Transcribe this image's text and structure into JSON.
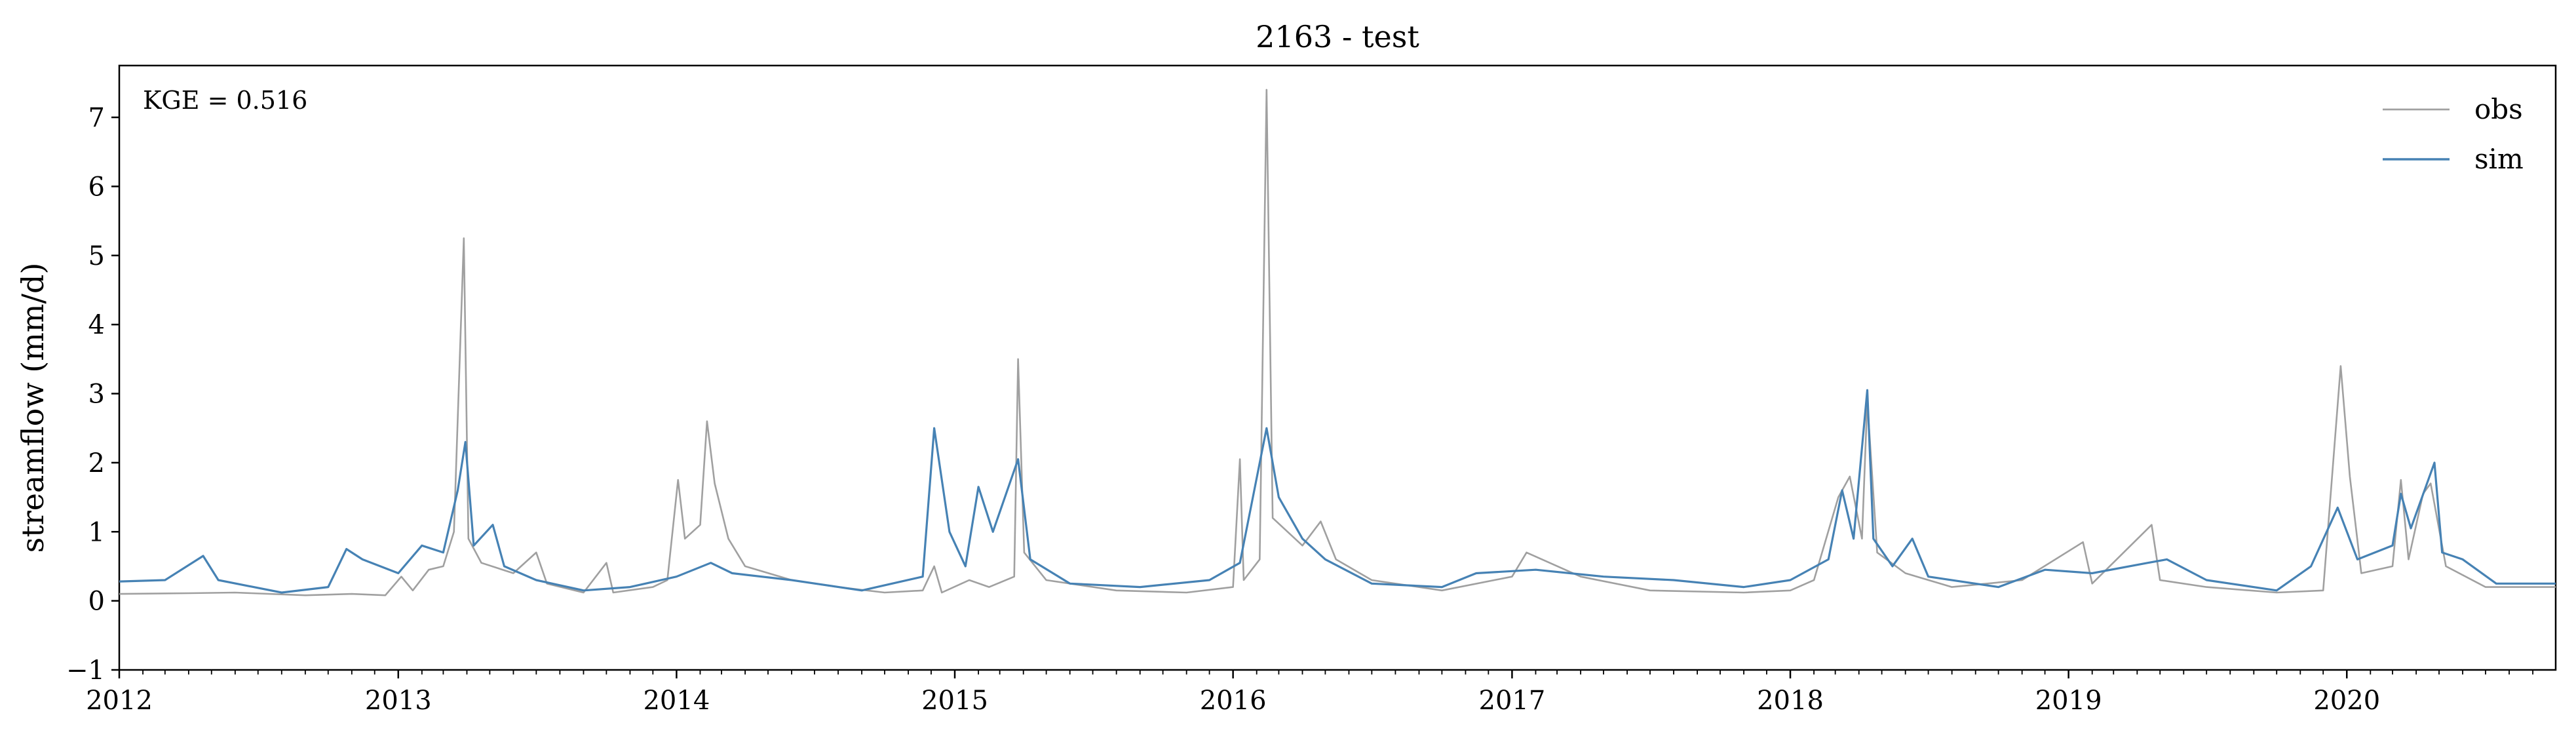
{
  "chart_data": {
    "type": "line",
    "title": "2163 - test",
    "xlabel": "",
    "ylabel": "streamflow (mm/d)",
    "annotation": "KGE = 0.516",
    "xlim": [
      "2012-01-01",
      "2020-10-01"
    ],
    "ylim": [
      -1,
      7.75
    ],
    "x_ticks": [
      "2012",
      "2013",
      "2014",
      "2015",
      "2016",
      "2017",
      "2018",
      "2019",
      "2020"
    ],
    "y_ticks": [
      -1,
      0,
      1,
      2,
      3,
      4,
      5,
      6,
      7
    ],
    "grid": false,
    "legend_position": "top-right",
    "series": [
      {
        "name": "obs",
        "color": "#a0a0a0",
        "points": [
          [
            "2012-01-01",
            0.1
          ],
          [
            "2012-04-01",
            0.11
          ],
          [
            "2012-06-01",
            0.12
          ],
          [
            "2012-09-01",
            0.08
          ],
          [
            "2012-11-01",
            0.1
          ],
          [
            "2012-12-15",
            0.08
          ],
          [
            "2013-01-05",
            0.35
          ],
          [
            "2013-01-20",
            0.15
          ],
          [
            "2013-02-10",
            0.45
          ],
          [
            "2013-03-01",
            0.5
          ],
          [
            "2013-03-15",
            1.0
          ],
          [
            "2013-03-28",
            5.25
          ],
          [
            "2013-04-03",
            0.9
          ],
          [
            "2013-04-20",
            0.55
          ],
          [
            "2013-06-01",
            0.4
          ],
          [
            "2013-07-01",
            0.7
          ],
          [
            "2013-07-15",
            0.25
          ],
          [
            "2013-09-01",
            0.12
          ],
          [
            "2013-10-01",
            0.55
          ],
          [
            "2013-10-10",
            0.12
          ],
          [
            "2013-12-01",
            0.2
          ],
          [
            "2013-12-20",
            0.3
          ],
          [
            "2014-01-03",
            1.75
          ],
          [
            "2014-01-12",
            0.9
          ],
          [
            "2014-02-01",
            1.1
          ],
          [
            "2014-02-10",
            2.6
          ],
          [
            "2014-02-20",
            1.7
          ],
          [
            "2014-03-10",
            0.9
          ],
          [
            "2014-04-01",
            0.5
          ],
          [
            "2014-06-01",
            0.3
          ],
          [
            "2014-08-01",
            0.2
          ],
          [
            "2014-10-01",
            0.12
          ],
          [
            "2014-11-20",
            0.15
          ],
          [
            "2014-12-05",
            0.5
          ],
          [
            "2014-12-15",
            0.12
          ],
          [
            "2015-01-20",
            0.3
          ],
          [
            "2015-02-15",
            0.2
          ],
          [
            "2015-03-20",
            0.35
          ],
          [
            "2015-03-25",
            3.5
          ],
          [
            "2015-04-02",
            0.7
          ],
          [
            "2015-05-01",
            0.3
          ],
          [
            "2015-08-01",
            0.15
          ],
          [
            "2015-11-01",
            0.12
          ],
          [
            "2016-01-01",
            0.2
          ],
          [
            "2016-01-10",
            2.05
          ],
          [
            "2016-01-15",
            0.3
          ],
          [
            "2016-02-05",
            0.6
          ],
          [
            "2016-02-14",
            7.4
          ],
          [
            "2016-02-22",
            1.2
          ],
          [
            "2016-04-01",
            0.8
          ],
          [
            "2016-04-25",
            1.15
          ],
          [
            "2016-05-15",
            0.6
          ],
          [
            "2016-07-01",
            0.3
          ],
          [
            "2016-10-01",
            0.15
          ],
          [
            "2017-01-01",
            0.35
          ],
          [
            "2017-01-20",
            0.7
          ],
          [
            "2017-04-01",
            0.35
          ],
          [
            "2017-07-01",
            0.15
          ],
          [
            "2017-11-01",
            0.12
          ],
          [
            "2018-01-01",
            0.15
          ],
          [
            "2018-02-01",
            0.3
          ],
          [
            "2018-03-05",
            1.5
          ],
          [
            "2018-03-20",
            1.8
          ],
          [
            "2018-04-05",
            0.9
          ],
          [
            "2018-04-12",
            2.9
          ],
          [
            "2018-04-25",
            0.7
          ],
          [
            "2018-06-01",
            0.4
          ],
          [
            "2018-08-01",
            0.2
          ],
          [
            "2018-11-01",
            0.3
          ],
          [
            "2019-01-20",
            0.85
          ],
          [
            "2019-02-01",
            0.25
          ],
          [
            "2019-04-20",
            1.1
          ],
          [
            "2019-05-01",
            0.3
          ],
          [
            "2019-07-01",
            0.2
          ],
          [
            "2019-10-01",
            0.12
          ],
          [
            "2019-12-01",
            0.15
          ],
          [
            "2019-12-24",
            3.4
          ],
          [
            "2020-01-05",
            1.8
          ],
          [
            "2020-01-20",
            0.4
          ],
          [
            "2020-03-01",
            0.5
          ],
          [
            "2020-03-12",
            1.75
          ],
          [
            "2020-03-22",
            0.6
          ],
          [
            "2020-04-10",
            1.55
          ],
          [
            "2020-04-20",
            1.7
          ],
          [
            "2020-05-10",
            0.5
          ],
          [
            "2020-07-01",
            0.2
          ],
          [
            "2020-10-01",
            0.2
          ]
        ]
      },
      {
        "name": "sim",
        "color": "#4682b4",
        "points": [
          [
            "2012-01-01",
            0.28
          ],
          [
            "2012-03-01",
            0.3
          ],
          [
            "2012-04-20",
            0.65
          ],
          [
            "2012-05-10",
            0.3
          ],
          [
            "2012-08-01",
            0.12
          ],
          [
            "2012-10-01",
            0.2
          ],
          [
            "2012-10-25",
            0.75
          ],
          [
            "2012-11-15",
            0.6
          ],
          [
            "2013-01-01",
            0.4
          ],
          [
            "2013-02-01",
            0.8
          ],
          [
            "2013-03-01",
            0.7
          ],
          [
            "2013-03-20",
            1.6
          ],
          [
            "2013-03-30",
            2.3
          ],
          [
            "2013-04-10",
            0.8
          ],
          [
            "2013-05-05",
            1.1
          ],
          [
            "2013-05-20",
            0.5
          ],
          [
            "2013-07-01",
            0.3
          ],
          [
            "2013-09-01",
            0.15
          ],
          [
            "2013-11-01",
            0.2
          ],
          [
            "2014-01-01",
            0.35
          ],
          [
            "2014-02-15",
            0.55
          ],
          [
            "2014-03-15",
            0.4
          ],
          [
            "2014-06-01",
            0.3
          ],
          [
            "2014-09-01",
            0.15
          ],
          [
            "2014-11-20",
            0.35
          ],
          [
            "2014-12-05",
            2.5
          ],
          [
            "2014-12-25",
            1.0
          ],
          [
            "2015-01-15",
            0.5
          ],
          [
            "2015-02-01",
            1.65
          ],
          [
            "2015-02-20",
            1.0
          ],
          [
            "2015-03-25",
            2.05
          ],
          [
            "2015-04-10",
            0.6
          ],
          [
            "2015-06-01",
            0.25
          ],
          [
            "2015-09-01",
            0.2
          ],
          [
            "2015-12-01",
            0.3
          ],
          [
            "2016-01-10",
            0.55
          ],
          [
            "2016-02-14",
            2.5
          ],
          [
            "2016-03-01",
            1.5
          ],
          [
            "2016-04-01",
            0.9
          ],
          [
            "2016-05-01",
            0.6
          ],
          [
            "2016-07-01",
            0.25
          ],
          [
            "2016-10-01",
            0.2
          ],
          [
            "2016-11-15",
            0.4
          ],
          [
            "2017-02-01",
            0.45
          ],
          [
            "2017-05-01",
            0.35
          ],
          [
            "2017-08-01",
            0.3
          ],
          [
            "2017-11-01",
            0.2
          ],
          [
            "2018-01-01",
            0.3
          ],
          [
            "2018-02-20",
            0.6
          ],
          [
            "2018-03-10",
            1.6
          ],
          [
            "2018-03-25",
            0.9
          ],
          [
            "2018-04-12",
            3.05
          ],
          [
            "2018-04-20",
            0.9
          ],
          [
            "2018-05-15",
            0.5
          ],
          [
            "2018-06-10",
            0.9
          ],
          [
            "2018-07-01",
            0.35
          ],
          [
            "2018-10-01",
            0.2
          ],
          [
            "2018-12-01",
            0.45
          ],
          [
            "2019-02-01",
            0.4
          ],
          [
            "2019-04-15",
            0.55
          ],
          [
            "2019-05-10",
            0.6
          ],
          [
            "2019-07-01",
            0.3
          ],
          [
            "2019-10-01",
            0.15
          ],
          [
            "2019-11-15",
            0.5
          ],
          [
            "2019-12-20",
            1.35
          ],
          [
            "2020-01-15",
            0.6
          ],
          [
            "2020-03-01",
            0.8
          ],
          [
            "2020-03-12",
            1.55
          ],
          [
            "2020-03-25",
            1.05
          ],
          [
            "2020-04-25",
            2.0
          ],
          [
            "2020-05-05",
            0.7
          ],
          [
            "2020-06-01",
            0.6
          ],
          [
            "2020-07-15",
            0.25
          ],
          [
            "2020-10-01",
            0.25
          ]
        ]
      }
    ]
  }
}
